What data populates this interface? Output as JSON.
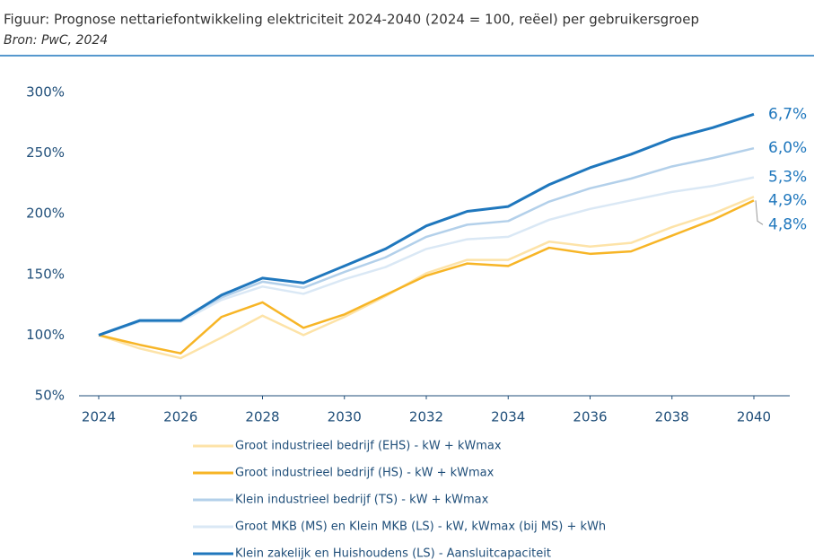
{
  "chart_data": {
    "type": "line",
    "title": "Figuur: Prognose nettariefontwikkeling elektriciteit 2024-2040 (2024 = 100, reëel) per gebruikersgroep",
    "subtitle": "Bron: PwC, 2024",
    "x": [
      2024,
      2025,
      2026,
      2027,
      2028,
      2029,
      2030,
      2031,
      2032,
      2033,
      2034,
      2035,
      2036,
      2037,
      2038,
      2039,
      2040
    ],
    "xlim": [
      2024,
      2040
    ],
    "xticks": [
      2024,
      2026,
      2028,
      2030,
      2032,
      2034,
      2036,
      2038,
      2040
    ],
    "ylim": [
      50,
      300
    ],
    "yticks": [
      {
        "value": 50,
        "label": "50%"
      },
      {
        "value": 100,
        "label": "100%"
      },
      {
        "value": 150,
        "label": "150%"
      },
      {
        "value": 200,
        "label": "200%"
      },
      {
        "value": 250,
        "label": "250%"
      },
      {
        "value": 300,
        "label": "300%"
      }
    ],
    "grid": false,
    "legend": "bottom",
    "series": [
      {
        "name": "Groot industrieel bedrijf (EHS) - kW + kWmax",
        "color": "#fde3a8",
        "label": "4,9%",
        "values": [
          100,
          89,
          81,
          98,
          116,
          100,
          115,
          132,
          151,
          162,
          162,
          177,
          173,
          176,
          189,
          200,
          214
        ]
      },
      {
        "name": "Groot industrieel bedrijf (HS) - kW + kWmax",
        "color": "#f7b526",
        "label": "4,8%",
        "values": [
          100,
          92,
          85,
          115,
          127,
          106,
          117,
          133,
          149,
          159,
          157,
          172,
          167,
          169,
          182,
          195,
          211
        ]
      },
      {
        "name": "Klein industrieel bedrijf (TS) - kW + kWmax",
        "color": "#b3d0ea",
        "label": "6,0%",
        "values": [
          100,
          111,
          111,
          131,
          144,
          139,
          152,
          164,
          181,
          191,
          194,
          210,
          221,
          229,
          239,
          246,
          254
        ]
      },
      {
        "name": "Groot MKB (MS) en Klein MKB (LS) - kW, kWmax (bij MS) + kWh",
        "color": "#dae8f5",
        "label": "5,3%",
        "values": [
          100,
          111,
          111,
          129,
          140,
          134,
          146,
          156,
          171,
          179,
          181,
          195,
          204,
          211,
          218,
          223,
          230
        ]
      },
      {
        "name": "Klein zakelijk en Huishoudens (LS) - Aansluitcapaciteit",
        "color": "#1f77bd",
        "label": "6,7%",
        "values": [
          100,
          112,
          112,
          133,
          147,
          143,
          157,
          171,
          190,
          202,
          206,
          224,
          238,
          249,
          262,
          271,
          282
        ]
      }
    ]
  }
}
